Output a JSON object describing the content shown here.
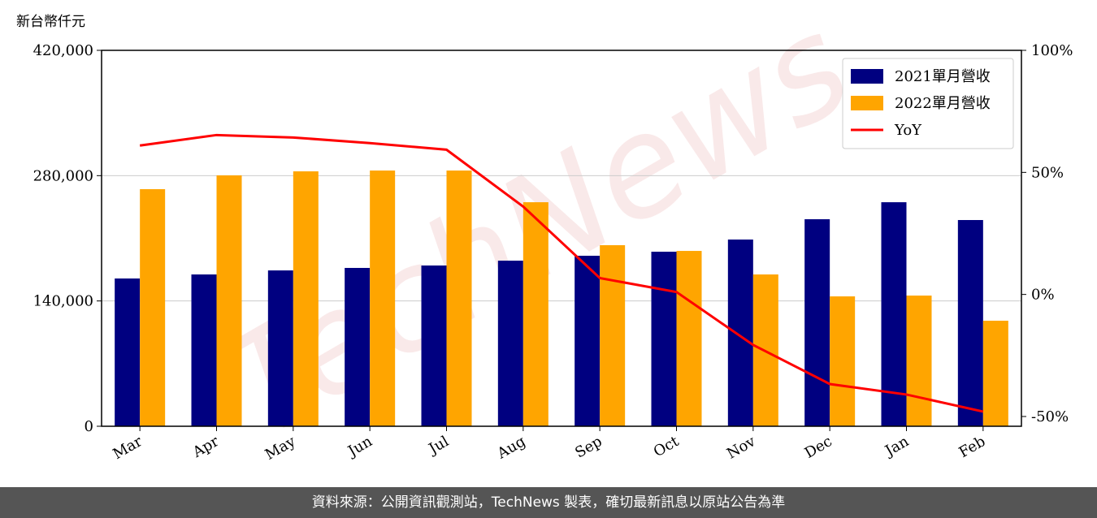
{
  "chart_data": {
    "type": "bar",
    "y_axis_label": "新台幣仟元",
    "watermark": "TechNews",
    "source": "資料來源：公開資訊觀測站，TechNews 製表，確切最新訊息以原站公告為準",
    "categories": [
      "Mar",
      "Apr",
      "May",
      "Jun",
      "Jul",
      "Aug",
      "Sep",
      "Oct",
      "Nov",
      "Dec",
      "Jan",
      "Feb"
    ],
    "series": [
      {
        "name": "2021單月營收",
        "color": "#000080",
        "type": "bar",
        "values": [
          165100,
          169600,
          174100,
          176900,
          179600,
          185000,
          190500,
          195000,
          208600,
          231300,
          250300,
          230400
        ]
      },
      {
        "name": "2022單月營收",
        "color": "#ffa500",
        "type": "bar",
        "values": [
          264900,
          280300,
          284800,
          285700,
          285700,
          250300,
          202300,
          195900,
          169600,
          145100,
          146000,
          117900
        ]
      },
      {
        "name": "YoY",
        "color": "#ff0000",
        "type": "line",
        "axis": "y2",
        "values": [
          61,
          65.3,
          64.3,
          62,
          59.3,
          36,
          6.7,
          1,
          -20.7,
          -36.7,
          -41,
          -48
        ]
      }
    ],
    "ylim": [
      0,
      420000
    ],
    "yticks": [
      {
        "value": 0,
        "label": "0"
      },
      {
        "value": 140000,
        "label": "140,000"
      },
      {
        "value": 280000,
        "label": "280,000"
      },
      {
        "value": 420000,
        "label": "420,000"
      }
    ],
    "y2lim": [
      -54,
      100
    ],
    "y2ticks": [
      {
        "value": -50,
        "label": "-50%"
      },
      {
        "value": 0,
        "label": "0%"
      },
      {
        "value": 50,
        "label": "50%"
      },
      {
        "value": 100,
        "label": "100%"
      }
    ],
    "grid": true,
    "legend": "upper right"
  }
}
